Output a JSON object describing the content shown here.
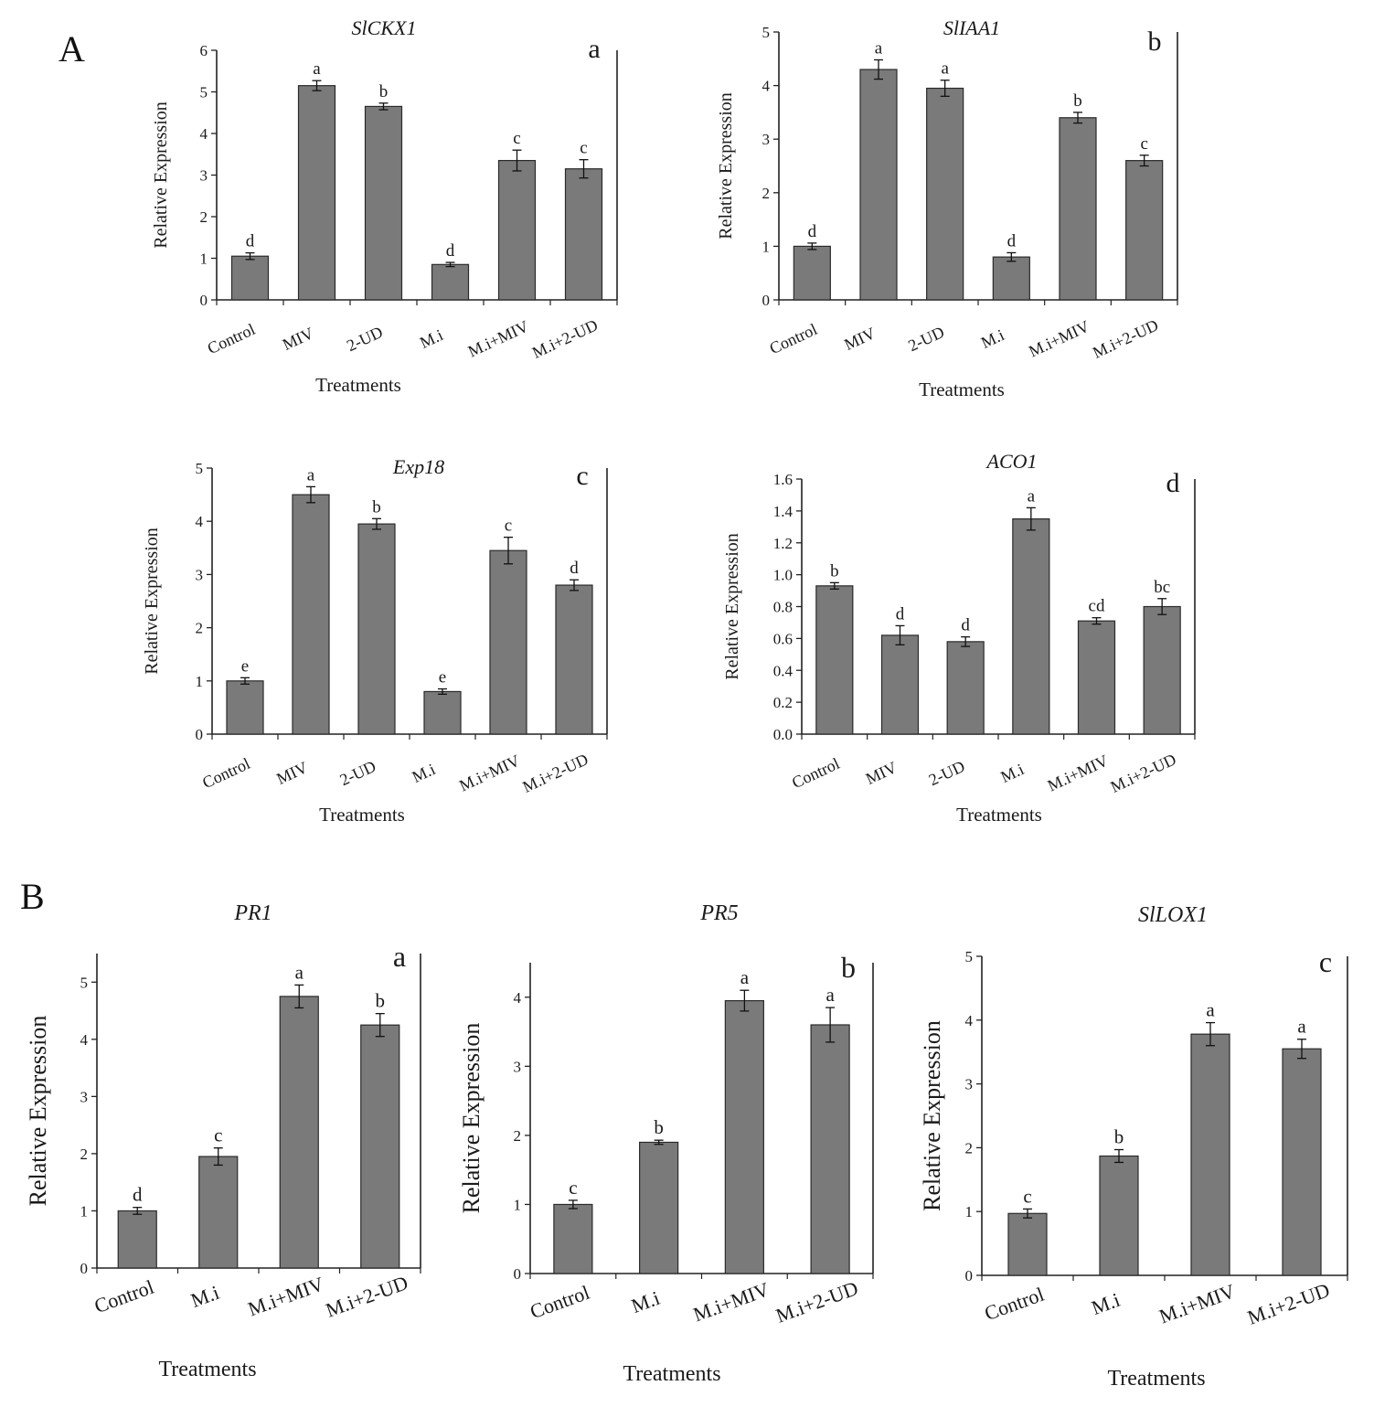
{
  "sections": {
    "A": "A",
    "B": "B"
  },
  "style": {
    "bar_color": "#7a7a7a",
    "bar_edge": "#2a2a2a",
    "axis_color": "#222222",
    "text_color": "#1a1a1a"
  },
  "chart_data": [
    {
      "id": "A-a",
      "type": "bar",
      "title": "SlCKX1",
      "panel_letter": "a",
      "xlabel": "Treatments",
      "ylabel": "Relative Expression",
      "categories": [
        "Control",
        "MIV",
        "2-UD",
        "M.i",
        "M.i+MIV",
        "M.i+2-UD"
      ],
      "values": [
        1.05,
        5.15,
        4.65,
        0.85,
        3.35,
        3.15
      ],
      "errors": [
        0.08,
        0.12,
        0.08,
        0.05,
        0.25,
        0.22
      ],
      "sig_letters": [
        "d",
        "a",
        "b",
        "d",
        "c",
        "c"
      ],
      "ylim": [
        0,
        6
      ],
      "yticks": [
        "0",
        "1",
        "2",
        "3",
        "4",
        "5",
        "6"
      ]
    },
    {
      "id": "A-b",
      "type": "bar",
      "title": "SlIAA1",
      "panel_letter": "b",
      "xlabel": "Treatments",
      "ylabel": "Relative Expression",
      "categories": [
        "Control",
        "MIV",
        "2-UD",
        "M.i",
        "M.i+MIV",
        "M.i+2-UD"
      ],
      "values": [
        1.0,
        4.3,
        3.95,
        0.8,
        3.4,
        2.6
      ],
      "errors": [
        0.06,
        0.18,
        0.15,
        0.08,
        0.1,
        0.1
      ],
      "sig_letters": [
        "d",
        "a",
        "a",
        "d",
        "b",
        "c"
      ],
      "ylim": [
        0,
        5
      ],
      "yticks": [
        "0",
        "1",
        "2",
        "3",
        "4",
        "5"
      ]
    },
    {
      "id": "A-c",
      "type": "bar",
      "title": "Exp18",
      "panel_letter": "c",
      "xlabel": "Treatments",
      "ylabel": "Relative Expression",
      "categories": [
        "Control",
        "MIV",
        "2-UD",
        "M.i",
        "M.i+MIV",
        "M.i+2-UD"
      ],
      "values": [
        1.0,
        4.5,
        3.95,
        0.8,
        3.45,
        2.8
      ],
      "errors": [
        0.06,
        0.15,
        0.1,
        0.05,
        0.25,
        0.1
      ],
      "sig_letters": [
        "e",
        "a",
        "b",
        "e",
        "c",
        "d"
      ],
      "ylim": [
        0,
        5
      ],
      "yticks": [
        "0",
        "1",
        "2",
        "3",
        "4",
        "5"
      ]
    },
    {
      "id": "A-d",
      "type": "bar",
      "title": "ACO1",
      "panel_letter": "d",
      "xlabel": "Treatments",
      "ylabel": "Relative Expression",
      "categories": [
        "Control",
        "MIV",
        "2-UD",
        "M.i",
        "M.i+MIV",
        "M.i+2-UD"
      ],
      "values": [
        0.93,
        0.62,
        0.58,
        1.35,
        0.71,
        0.8
      ],
      "errors": [
        0.02,
        0.06,
        0.03,
        0.07,
        0.02,
        0.05
      ],
      "sig_letters": [
        "b",
        "d",
        "d",
        "a",
        "cd",
        "bc"
      ],
      "ylim": [
        0,
        1.6
      ],
      "yticks": [
        "0.0",
        "0.2",
        "0.4",
        "0.6",
        "0.8",
        "1.0",
        "1.2",
        "1.4",
        "1.6"
      ]
    },
    {
      "id": "B-a",
      "type": "bar",
      "title": "PR1",
      "panel_letter": "a",
      "xlabel": "Treatments",
      "ylabel": "Relative Expression",
      "categories": [
        "Control",
        "M.i",
        "M.i+MIV",
        "M.i+2-UD"
      ],
      "values": [
        1.0,
        1.95,
        4.75,
        4.25
      ],
      "errors": [
        0.06,
        0.15,
        0.2,
        0.2
      ],
      "sig_letters": [
        "d",
        "c",
        "a",
        "b"
      ],
      "ylim": [
        0,
        5.5
      ],
      "yticks": [
        "0",
        "1",
        "2",
        "3",
        "4",
        "5"
      ]
    },
    {
      "id": "B-b",
      "type": "bar",
      "title": "PR5",
      "panel_letter": "b",
      "xlabel": "Treatments",
      "ylabel": "Relative Expression",
      "categories": [
        "Control",
        "M.i",
        "M.i+MIV",
        "M.i+2-UD"
      ],
      "values": [
        1.0,
        1.9,
        3.95,
        3.6
      ],
      "errors": [
        0.06,
        0.03,
        0.15,
        0.25
      ],
      "sig_letters": [
        "c",
        "b",
        "a",
        "a"
      ],
      "ylim": [
        0,
        4.5
      ],
      "yticks": [
        "0",
        "1",
        "2",
        "3",
        "4"
      ]
    },
    {
      "id": "B-c",
      "type": "bar",
      "title": "SlLOX1",
      "panel_letter": "c",
      "xlabel": "Treatments",
      "ylabel": "Relative Expression",
      "categories": [
        "Control",
        "M.i",
        "M.i+MIV",
        "M.i+2-UD"
      ],
      "values": [
        0.97,
        1.87,
        3.78,
        3.55
      ],
      "errors": [
        0.07,
        0.1,
        0.18,
        0.15
      ],
      "sig_letters": [
        "c",
        "b",
        "a",
        "a"
      ],
      "ylim": [
        0,
        5
      ],
      "yticks": [
        "0",
        "1",
        "2",
        "3",
        "4",
        "5"
      ]
    }
  ]
}
